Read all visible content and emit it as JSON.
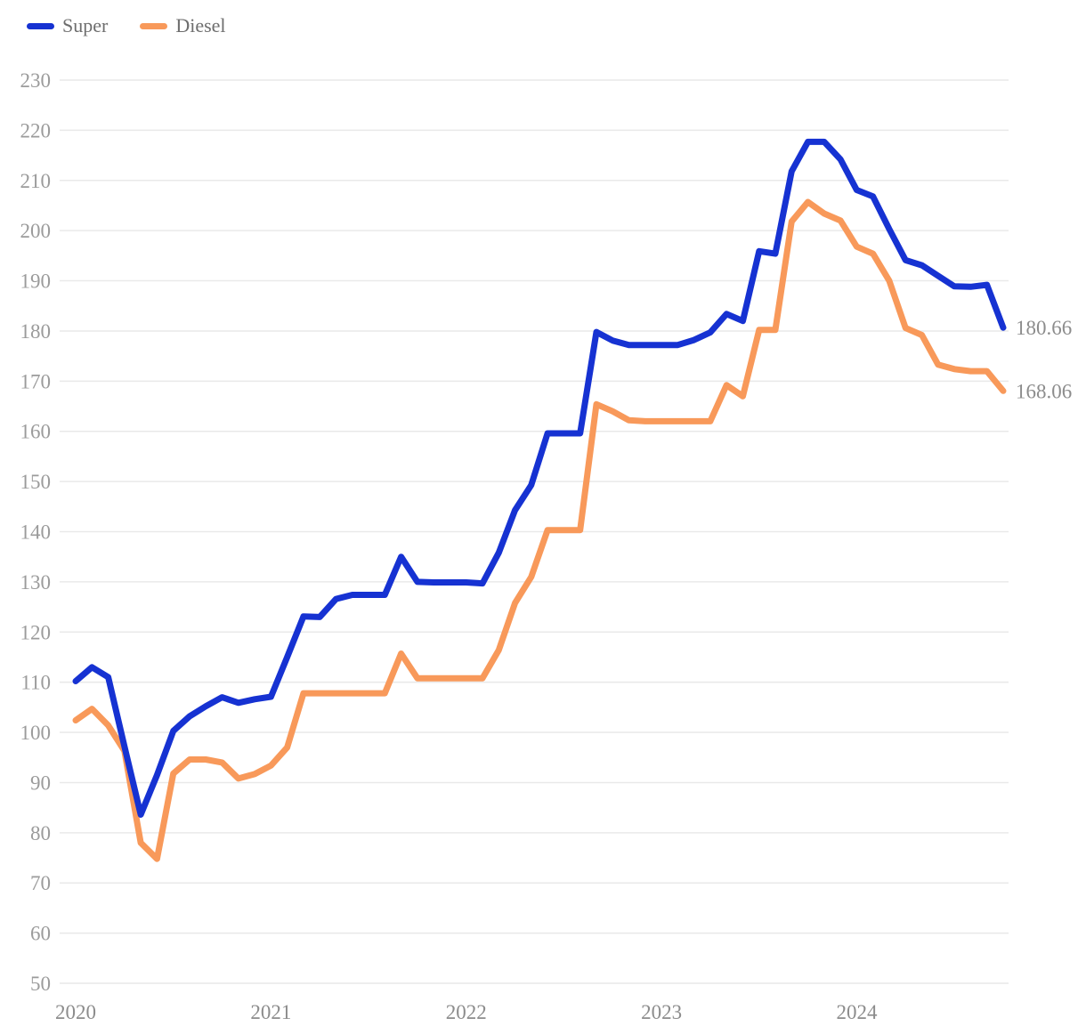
{
  "chart_data": {
    "type": "line",
    "title": "",
    "x_start": "2020-01",
    "x_end": "2024-10",
    "frequency": "monthly",
    "points_per_series": 58,
    "x_tick_labels": [
      "2020",
      "2021",
      "2022",
      "2023",
      "2024"
    ],
    "y_ticks": [
      50,
      60,
      70,
      80,
      90,
      100,
      110,
      120,
      130,
      140,
      150,
      160,
      170,
      180,
      190,
      200,
      210,
      220,
      230
    ],
    "ylim": [
      50,
      230
    ],
    "grid": "horizontal-only",
    "legend_position": "top-left",
    "series": [
      {
        "name": "Super",
        "color": "#1632d2",
        "end_label": "180.66",
        "values": [
          110.2,
          113,
          111,
          97.2,
          83.6,
          91.5,
          100.3,
          103.2,
          105.2,
          107,
          105.9,
          106.6,
          107.1,
          115,
          123.1,
          123,
          126.6,
          127.4,
          127.4,
          127.4,
          135,
          130,
          129.9,
          129.9,
          129.9,
          129.7,
          135.8,
          144.3,
          149.3,
          159.6,
          159.6,
          159.6,
          179.8,
          178.1,
          177.2,
          177.2,
          177.2,
          177.2,
          178.2,
          179.7,
          183.4,
          182,
          195.9,
          195.4,
          211.8,
          217.7,
          217.7,
          214.2,
          208.1,
          206.8,
          200.3,
          194.1,
          193.1,
          191,
          188.9,
          188.8,
          189.2,
          180.66
        ]
      },
      {
        "name": "Diesel",
        "color": "#f8995a",
        "end_label": "168.06",
        "values": [
          102.4,
          104.7,
          101.4,
          96.3,
          78,
          74.8,
          91.8,
          94.6,
          94.6,
          94,
          90.8,
          91.7,
          93.4,
          97,
          107.8,
          107.8,
          107.8,
          107.8,
          107.8,
          107.8,
          115.7,
          110.8,
          110.8,
          110.8,
          110.8,
          110.8,
          116.4,
          125.8,
          131,
          140.3,
          140.3,
          140.3,
          165.4,
          164,
          162.2,
          162,
          162,
          162,
          162,
          162,
          169.2,
          167,
          180.2,
          180.2,
          201.8,
          205.7,
          203.4,
          202,
          196.8,
          195.4,
          190,
          180.6,
          179.2,
          173.3,
          172.4,
          172,
          172,
          168.06
        ]
      }
    ]
  },
  "colors": {
    "background": "#ffffff",
    "gridline": "#e9e9e9",
    "y_tick_text": "#9b9b9b",
    "x_tick_text": "#8c8c8c",
    "end_label_text": "#8c8c8c",
    "legend_text": "#6e6e6e"
  }
}
